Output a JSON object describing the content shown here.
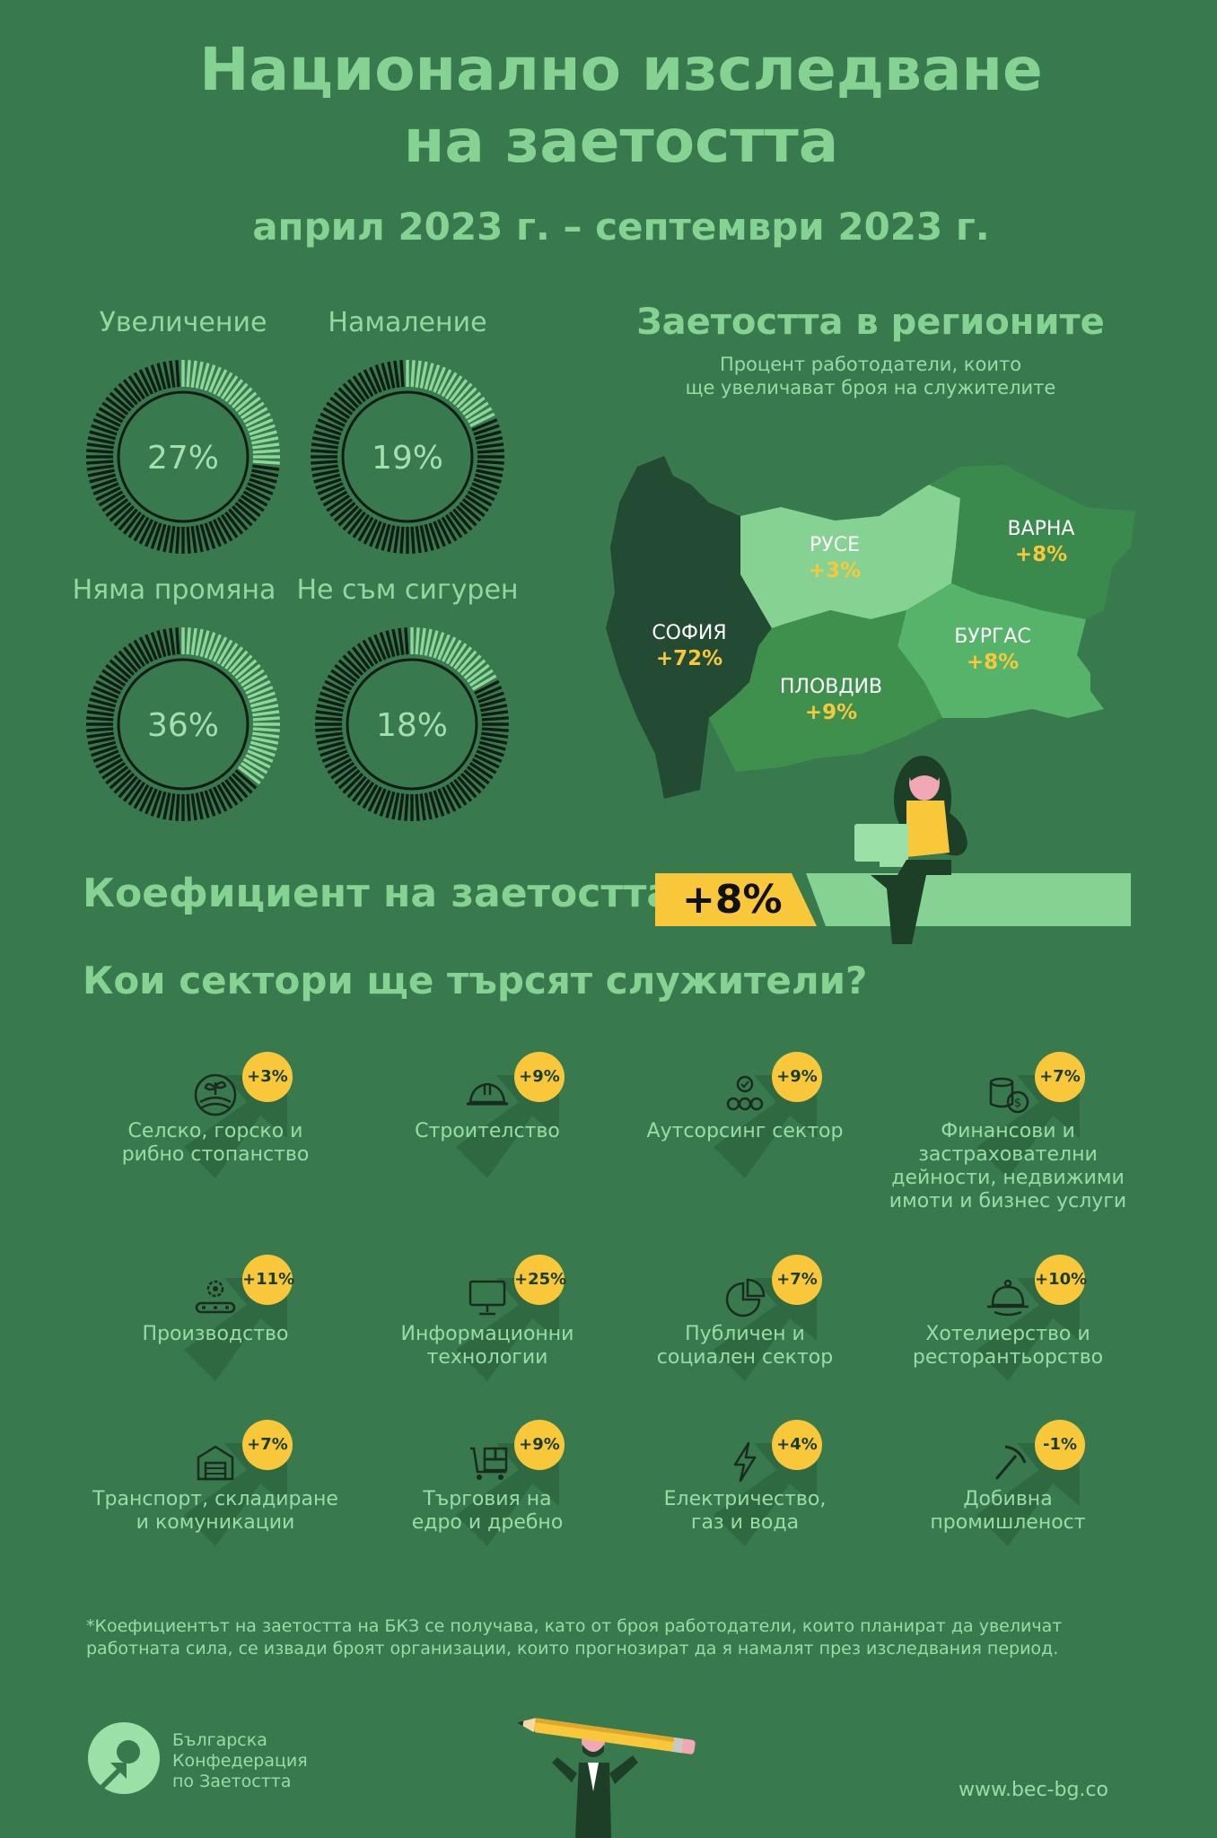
{
  "header": {
    "title_line1": "Национално изследване",
    "title_line2": "на заетостта",
    "period": "април 2023 г. – септември 2023 г."
  },
  "gauges": [
    {
      "label": "Увеличение",
      "value": "27%",
      "fraction": 0.27
    },
    {
      "label": "Намаление",
      "value": "19%",
      "fraction": 0.19
    },
    {
      "label": "Няма промяна",
      "value": "36%",
      "fraction": 0.36
    },
    {
      "label": "Не съм сигурен",
      "value": "18%",
      "fraction": 0.18
    }
  ],
  "regions": {
    "title": "Заетостта в регионите",
    "subtitle_line1": "Процент работодатели, които",
    "subtitle_line2": "ще увеличават броя на служителите",
    "items": [
      {
        "name": "СОФИЯ",
        "value": "+72%"
      },
      {
        "name": "РУСЕ",
        "value": "+3%"
      },
      {
        "name": "ВАРНА",
        "value": "+8%"
      },
      {
        "name": "БУРГАС",
        "value": "+8%"
      },
      {
        "name": "ПЛОВДИВ",
        "value": "+9%"
      }
    ]
  },
  "coefficient": {
    "label": "Коефициент на заетостта:",
    "value": "+8%"
  },
  "sectors": {
    "title": "Кои сектори ще търсят служители?",
    "items": [
      {
        "icon": "plant-icon",
        "name": "Селско, горско и\nрибно стопанство",
        "value": "+3%"
      },
      {
        "icon": "hard-hat-icon",
        "name": "Строителство",
        "value": "+9%"
      },
      {
        "icon": "team-icon",
        "name": "Аутсорсинг сектор",
        "value": "+9%"
      },
      {
        "icon": "coins-icon",
        "name": "Финансови и\nзастрахователни\nдейности, недвижими\nимоти и бизнес услуги",
        "value": "+7%"
      },
      {
        "icon": "conveyor-gear-icon",
        "name": "Производство",
        "value": "+11%"
      },
      {
        "icon": "monitor-icon",
        "name": "Информационни\nтехнологии",
        "value": "+25%"
      },
      {
        "icon": "pie-chart-icon",
        "name": "Публичен и\nсоциален сектор",
        "value": "+7%"
      },
      {
        "icon": "cloche-icon",
        "name": "Хотелиерство и\nресторантьорство",
        "value": "+10%"
      },
      {
        "icon": "warehouse-icon",
        "name": "Транспорт, складиране\nи комуникации",
        "value": "+7%"
      },
      {
        "icon": "cart-icon",
        "name": "Търговия на\nедро и дребно",
        "value": "+9%"
      },
      {
        "icon": "lightning-icon",
        "name": "Електричество,\nгаз и вода",
        "value": "+4%"
      },
      {
        "icon": "pickaxe-icon",
        "name": "Добивна\nпромишленост",
        "value": "-1%"
      }
    ]
  },
  "footnote": {
    "line1": "*Коефициентът на заетостта на БКЗ се получава, като от броя работодатели, които планират да увеличат",
    "line2": "работната сила, се извади броят организации, които прогнозират да я намалят през изследвания период."
  },
  "footer": {
    "logo_line1": "Българска",
    "logo_line2": "Конфедерация",
    "logo_line3": "по Заетостта",
    "url": "www.bec-bg.co"
  },
  "colors": {
    "background": "#387a4e",
    "accent_yellow": "#f8c83a",
    "title_green": "#86d292",
    "sofia": "#234a32",
    "ruse": "#86d292",
    "varna": "#3a8a4e",
    "burgas": "#55b36a",
    "plovdiv": "#3f8f4d"
  }
}
